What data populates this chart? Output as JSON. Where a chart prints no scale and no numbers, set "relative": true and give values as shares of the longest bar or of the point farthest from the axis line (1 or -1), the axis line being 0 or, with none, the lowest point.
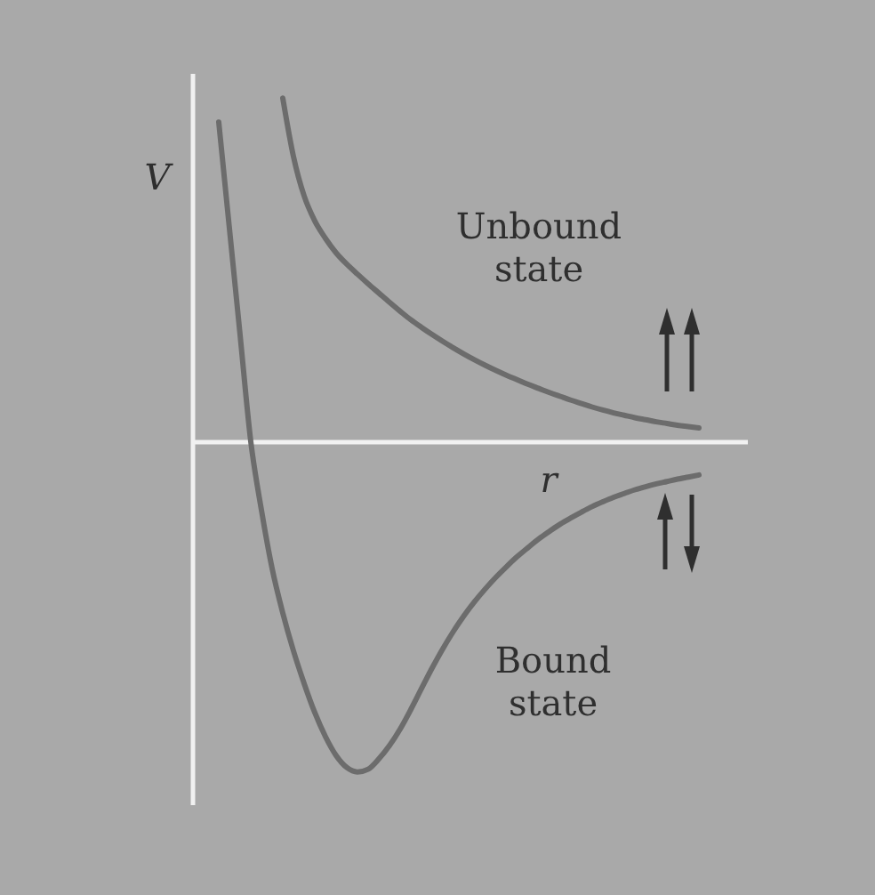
{
  "chart_data": {
    "type": "line",
    "relative": true,
    "xlabel": "r",
    "ylabel": "V",
    "legend": false,
    "categories": [
      null,
      null,
      null,
      null,
      null,
      null,
      null,
      null,
      null,
      null,
      null,
      null,
      null,
      null,
      null,
      null,
      null,
      null,
      null,
      null,
      null,
      null,
      null,
      null,
      null,
      null,
      null,
      null,
      null,
      null,
      null,
      null,
      null,
      null,
      null,
      null,
      null,
      null,
      null,
      null,
      null,
      null,
      null,
      null,
      null,
      null
    ],
    "series": [
      {
        "name": "Unbound state",
        "color": "#6c6c6c",
        "values": [
          null,
          null,
          null,
          null,
          null,
          null,
          1.0,
          0.83,
          0.715,
          0.642,
          0.591,
          0.549,
          0.516,
          0.487,
          0.459,
          0.432,
          0.405,
          0.379,
          0.354,
          0.332,
          0.311,
          0.291,
          0.272,
          0.254,
          0.237,
          0.221,
          0.206,
          0.192,
          0.179,
          0.166,
          0.154,
          0.142,
          0.131,
          0.12,
          0.11,
          0.1,
          0.091,
          0.083,
          0.076,
          0.069,
          0.063,
          0.057,
          0.052,
          0.047,
          0.043,
          0.039
        ]
      },
      {
        "name": "Bound state",
        "color": "#6c6c6c",
        "values": [
          0.93,
          0.62,
          0.31,
          0,
          -0.2,
          -0.37,
          -0.5,
          -0.61,
          -0.705,
          -0.79,
          -0.86,
          -0.915,
          -0.95,
          -0.963,
          -0.955,
          -0.925,
          -0.886,
          -0.838,
          -0.781,
          -0.72,
          -0.66,
          -0.604,
          -0.553,
          -0.507,
          -0.466,
          -0.429,
          -0.395,
          -0.364,
          -0.335,
          -0.309,
          -0.284,
          -0.262,
          -0.241,
          -0.223,
          -0.206,
          -0.19,
          -0.176,
          -0.163,
          -0.152,
          -0.141,
          -0.132,
          -0.124,
          -0.117,
          -0.11,
          -0.104,
          -0.098
        ]
      }
    ]
  }
}
